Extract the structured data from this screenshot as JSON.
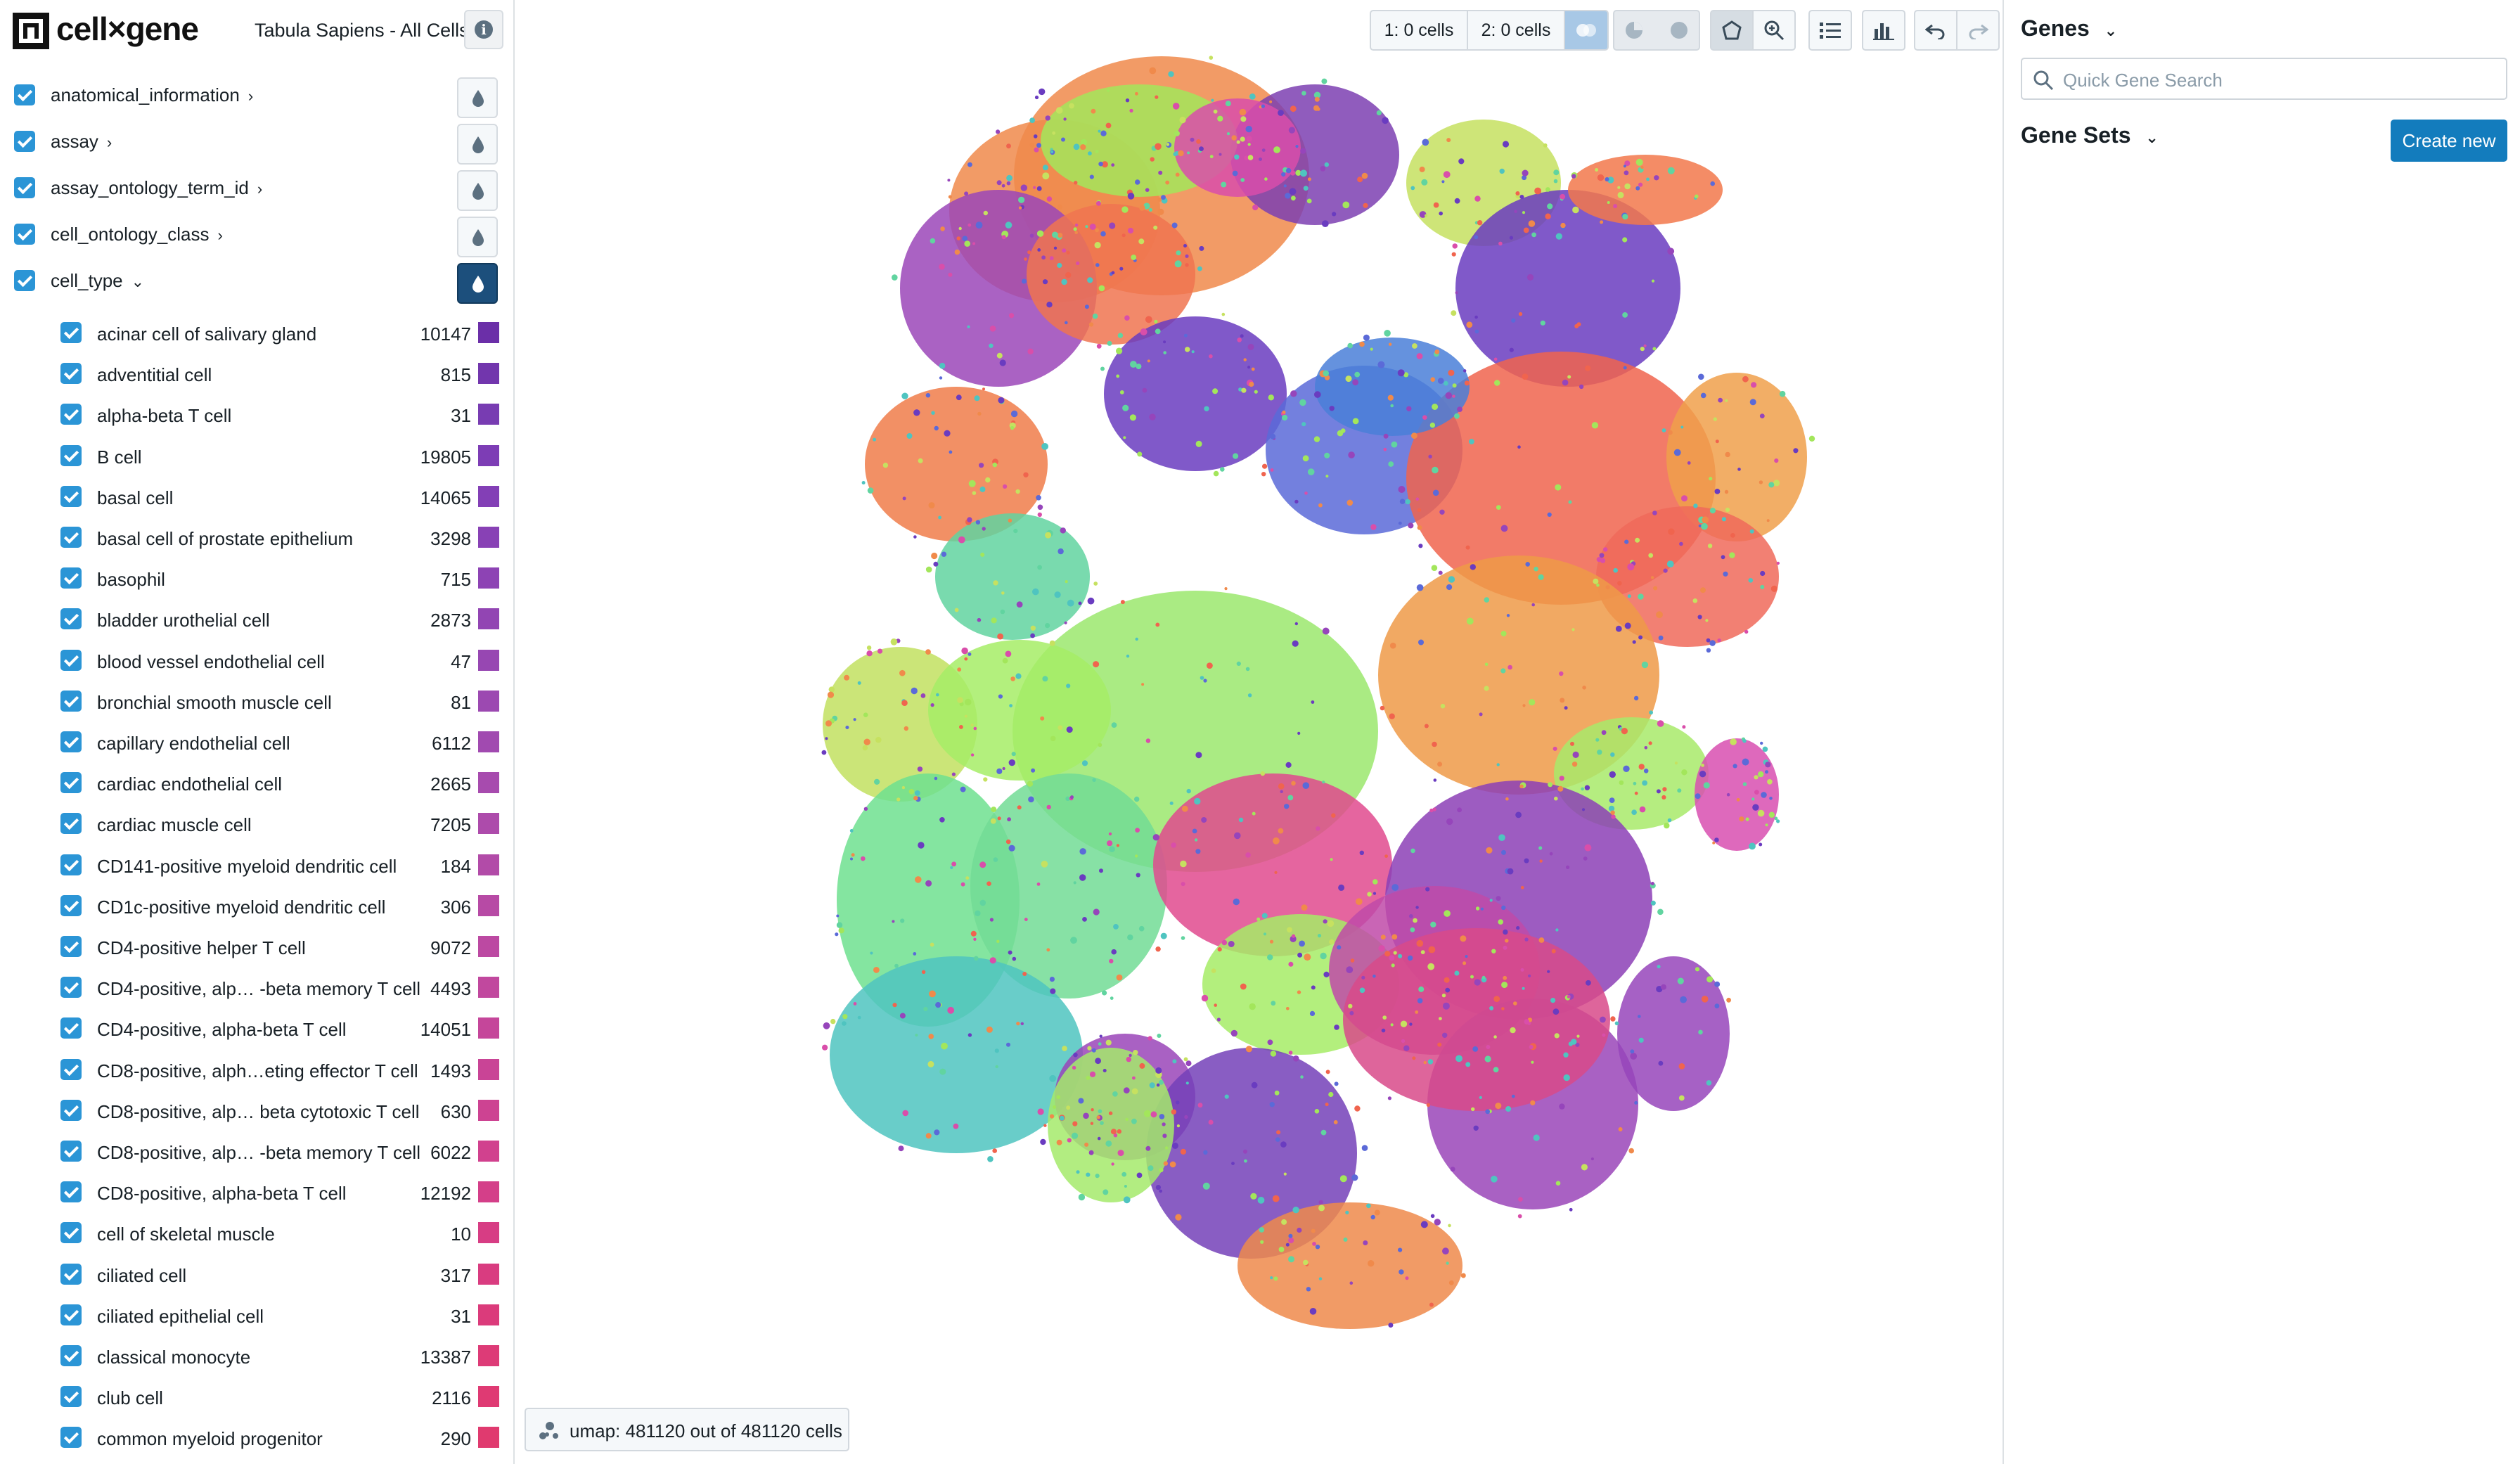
{
  "app": {
    "logo_text": "cell×gene",
    "dataset_title": "Tabula Sapiens - All Cells"
  },
  "categories": [
    {
      "label": "anatomical_information",
      "expanded": false
    },
    {
      "label": "assay",
      "expanded": false
    },
    {
      "label": "assay_ontology_term_id",
      "expanded": false
    },
    {
      "label": "cell_ontology_class",
      "expanded": false
    },
    {
      "label": "cell_type",
      "expanded": true
    }
  ],
  "cell_type_values": [
    {
      "label": "acinar cell of salivary gland",
      "count": "10147",
      "color": "#6b2fa8"
    },
    {
      "label": "adventitial cell",
      "count": "815",
      "color": "#7236ad"
    },
    {
      "label": "alpha-beta T cell",
      "count": "31",
      "color": "#783cb2"
    },
    {
      "label": "B cell",
      "count": "19805",
      "color": "#7d3db5"
    },
    {
      "label": "basal cell",
      "count": "14065",
      "color": "#833fb6"
    },
    {
      "label": "basal cell of prostate epithelium",
      "count": "3298",
      "color": "#8841b5"
    },
    {
      "label": "basophil",
      "count": "715",
      "color": "#8d43b4"
    },
    {
      "label": "bladder urothelial cell",
      "count": "2873",
      "color": "#9245b3"
    },
    {
      "label": "blood vessel endothelial cell",
      "count": "47",
      "color": "#9747b2"
    },
    {
      "label": "bronchial smooth muscle cell",
      "count": "81",
      "color": "#9c49b1"
    },
    {
      "label": "capillary endothelial cell",
      "count": "6112",
      "color": "#a14ab0"
    },
    {
      "label": "cardiac endothelial cell",
      "count": "2665",
      "color": "#a74bae"
    },
    {
      "label": "cardiac muscle cell",
      "count": "7205",
      "color": "#ad4bab"
    },
    {
      "label": "CD141-positive myeloid dendritic cell",
      "count": "184",
      "color": "#b24ba8"
    },
    {
      "label": "CD1c-positive myeloid dendritic cell",
      "count": "306",
      "color": "#b74aa5"
    },
    {
      "label": "CD4-positive helper T cell",
      "count": "9072",
      "color": "#bc49a2"
    },
    {
      "label": "CD4-positive, alp… -beta memory T cell",
      "count": "4493",
      "color": "#c1489e"
    },
    {
      "label": "CD4-positive, alpha-beta T cell",
      "count": "14051",
      "color": "#c5469a"
    },
    {
      "label": "CD8-positive, alph…eting effector T cell",
      "count": "1493",
      "color": "#c94496"
    },
    {
      "label": "CD8-positive, alp… beta cytotoxic T cell",
      "count": "630",
      "color": "#cd4392"
    },
    {
      "label": "CD8-positive, alp… -beta memory T cell",
      "count": "6022",
      "color": "#d1418e"
    },
    {
      "label": "CD8-positive, alpha-beta T cell",
      "count": "12192",
      "color": "#d43f89"
    },
    {
      "label": "cell of skeletal muscle",
      "count": "10",
      "color": "#d73d84"
    },
    {
      "label": "ciliated cell",
      "count": "317",
      "color": "#d93c80"
    },
    {
      "label": "ciliated epithelial cell",
      "count": "31",
      "color": "#db3b7b"
    },
    {
      "label": "classical monocyte",
      "count": "13387",
      "color": "#dd3b77"
    },
    {
      "label": "club cell",
      "count": "2116",
      "color": "#df3a73"
    },
    {
      "label": "common myeloid progenitor",
      "count": "290",
      "color": "#e03a6f"
    }
  ],
  "toolbar": {
    "subset1_label": "1: 0 cells",
    "subset2_label": "2: 0 cells"
  },
  "embedding": {
    "label": "umap: 481120 out of 481120 cells"
  },
  "right_panel": {
    "genes_header": "Genes",
    "search_placeholder": "Quick Gene Search",
    "genesets_header": "Gene Sets",
    "create_button": "Create new"
  },
  "colors": {
    "accent": "#137cbd",
    "checkbox": "#2b95d6",
    "active_color_button": "#1c4f7c"
  }
}
